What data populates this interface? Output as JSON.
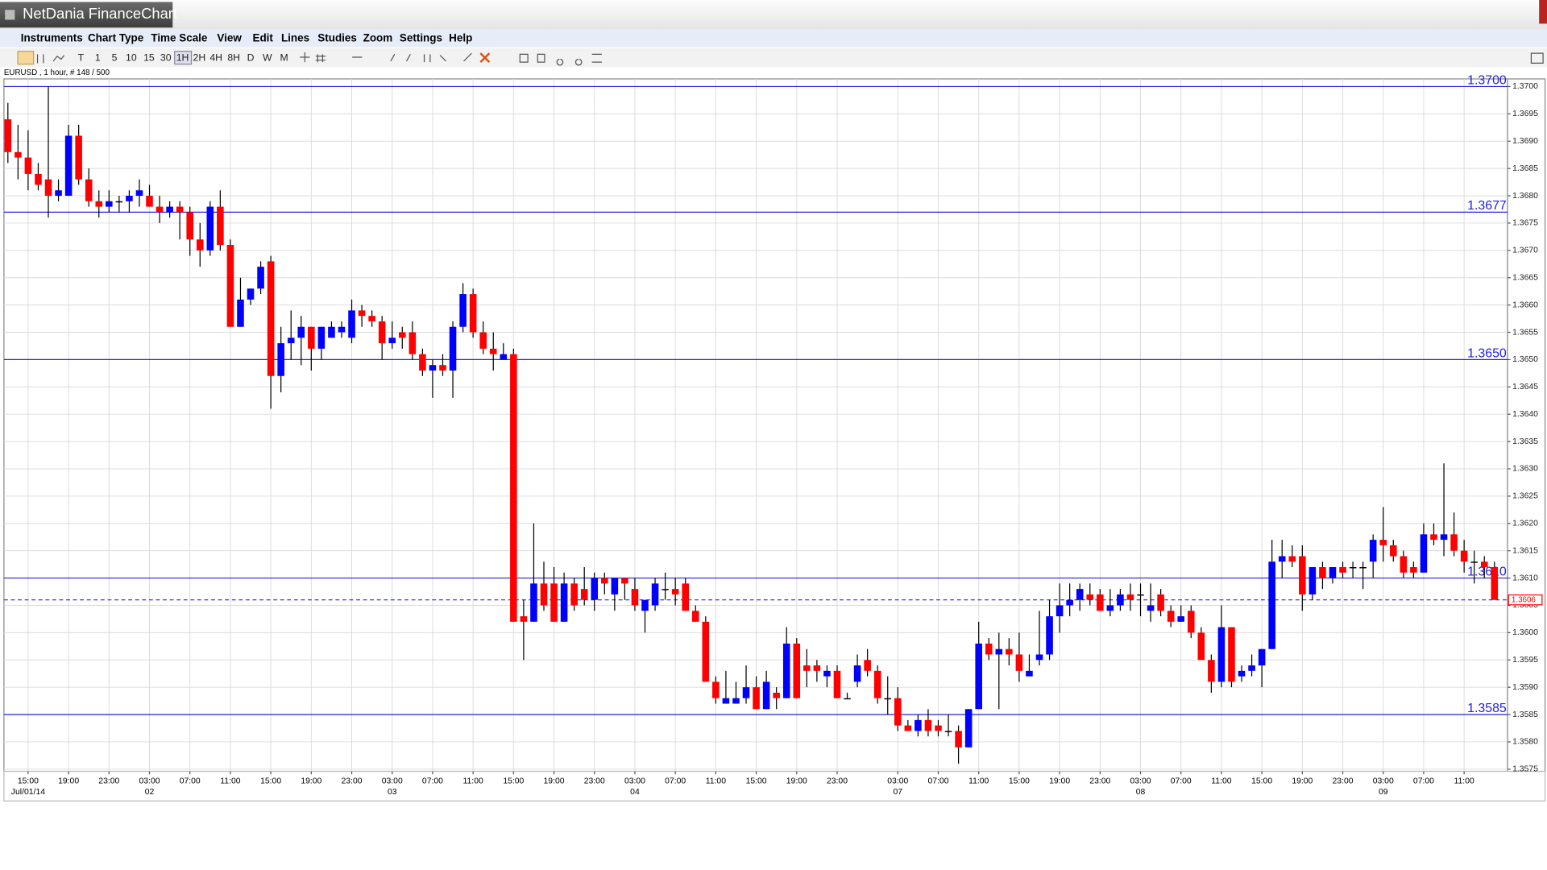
{
  "header": {
    "title": "NetDania FinanceChart"
  },
  "menu": [
    "Instruments",
    "Chart Type",
    "Time Scale",
    "View",
    "Edit",
    "Lines",
    "Studies",
    "Zoom",
    "Settings",
    "Help"
  ],
  "toolbar": {
    "timeframes": [
      "T",
      "1",
      "5",
      "10",
      "15",
      "30",
      "1H",
      "2H",
      "4H",
      "8H",
      "D",
      "W",
      "M"
    ]
  },
  "chart_data": {
    "type": "candlestick",
    "instrument_label": "EURUSD , 1 hour, # 148 / 500",
    "categories": [
      null,
      null,
      "15:00",
      null,
      null,
      null,
      "19:00",
      null,
      null,
      null,
      "23:00",
      null,
      null,
      null,
      "03:00",
      null,
      null,
      null,
      "07:00",
      null,
      null,
      null,
      "11:00",
      null,
      null,
      null,
      "15:00",
      null,
      null,
      null,
      "19:00",
      null,
      null,
      null,
      "23:00",
      null,
      null,
      null,
      "03:00",
      null,
      null,
      null,
      "07:00",
      null,
      null,
      null,
      "11:00",
      null,
      null,
      null,
      "15:00",
      null,
      null,
      null,
      "19:00",
      null,
      null,
      null,
      "23:00",
      null,
      null,
      null,
      "03:00",
      null,
      null,
      null,
      "07:00",
      null,
      null,
      null,
      "11:00",
      null,
      null,
      null,
      "15:00",
      null,
      null,
      null,
      "19:00",
      null,
      null,
      null,
      "23:00",
      null,
      null,
      null,
      null,
      null,
      "03:00",
      null,
      null,
      null,
      "07:00",
      null,
      null,
      null,
      "11:00",
      null,
      null,
      null,
      "15:00",
      null,
      null,
      null,
      "19:00",
      null,
      null,
      null,
      "23:00",
      null,
      null,
      null,
      "03:00",
      null,
      null,
      null,
      "07:00",
      null,
      null,
      null,
      "11:00",
      null,
      null,
      null,
      "15:00",
      null,
      null,
      null,
      "19:00",
      null,
      null,
      null,
      "23:00",
      null,
      null,
      null,
      "03:00",
      null,
      null,
      null,
      "07:00",
      null,
      null,
      null,
      "11:00",
      null,
      null,
      null
    ],
    "dates": [
      null,
      null,
      "Jul/01/14",
      null,
      null,
      null,
      null,
      null,
      null,
      null,
      null,
      null,
      null,
      null,
      "02",
      null,
      null,
      null,
      null,
      null,
      null,
      null,
      null,
      null,
      null,
      null,
      null,
      null,
      null,
      null,
      null,
      null,
      null,
      null,
      null,
      null,
      null,
      null,
      "03",
      null,
      null,
      null,
      null,
      null,
      null,
      null,
      null,
      null,
      null,
      null,
      null,
      null,
      null,
      null,
      null,
      null,
      null,
      null,
      null,
      null,
      null,
      null,
      "04",
      null,
      null,
      null,
      null,
      null,
      null,
      null,
      null,
      null,
      null,
      null,
      null,
      null,
      null,
      null,
      null,
      null,
      null,
      null,
      null,
      null,
      null,
      null,
      null,
      null,
      "07",
      null,
      null,
      null,
      null,
      null,
      null,
      null,
      null,
      null,
      null,
      null,
      null,
      null,
      null,
      null,
      null,
      null,
      null,
      null,
      null,
      null,
      null,
      null,
      "08",
      null,
      null,
      null,
      null,
      null,
      null,
      null,
      null,
      null,
      null,
      null,
      null,
      null,
      null,
      null,
      null,
      null,
      null,
      null,
      null,
      null,
      null,
      null,
      "09",
      null,
      null,
      null,
      null,
      null,
      null,
      null,
      null,
      null,
      null,
      null
    ],
    "open": [
      1.3694,
      1.3688,
      1.3687,
      1.3684,
      1.3683,
      1.368,
      1.368,
      1.3691,
      1.3683,
      1.3679,
      1.3678,
      1.3679,
      1.3679,
      1.368,
      1.368,
      1.3678,
      1.3677,
      1.3678,
      1.3677,
      1.3672,
      1.367,
      1.3678,
      1.3671,
      1.3656,
      1.3661,
      1.3663,
      1.3668,
      1.3647,
      1.3653,
      1.3654,
      1.3656,
      1.3652,
      1.3654,
      1.3655,
      1.3654,
      1.3659,
      1.3658,
      1.3657,
      1.3653,
      1.3655,
      1.3655,
      1.3651,
      1.3648,
      1.3649,
      1.3648,
      1.3656,
      1.3662,
      1.3655,
      1.3652,
      1.365,
      1.3651,
      1.3603,
      1.3602,
      1.3609,
      1.3609,
      1.3602,
      1.3609,
      1.3608,
      1.3606,
      1.361,
      1.3607,
      1.361,
      1.3608,
      1.3604,
      1.3605,
      1.3608,
      1.3608,
      1.3609,
      1.3604,
      1.3602,
      1.3591,
      1.3587,
      1.3587,
      1.3588,
      1.359,
      1.3586,
      1.3589,
      1.3588,
      1.3598,
      1.3594,
      1.3594,
      1.3592,
      1.3593,
      1.3588,
      1.3591,
      1.3595,
      1.3593,
      1.3588,
      1.3588,
      1.3583,
      1.3582,
      1.3584,
      1.3583,
      1.3582,
      1.3582,
      1.3579,
      1.3586,
      1.3598,
      1.3596,
      1.3597,
      1.3596,
      1.3592,
      1.3595,
      1.3596,
      1.3603,
      1.3605,
      1.3606,
      1.3607,
      1.3607,
      1.3604,
      1.3605,
      1.3607,
      1.3607,
      1.3604,
      1.3607,
      1.3604,
      1.3602,
      1.3604,
      1.36,
      1.3595,
      1.3591,
      1.3601,
      1.3592,
      1.3593,
      1.3594,
      1.3597,
      1.3613,
      1.3614,
      1.3614,
      1.3607,
      1.3612,
      1.361,
      1.3612,
      1.3612,
      1.3612,
      1.3613,
      1.3617,
      1.3616,
      1.3614,
      1.3612,
      1.3611,
      1.3618,
      1.3617,
      1.3618,
      1.3615,
      1.3613,
      1.3613,
      1.3612
    ],
    "high": [
      1.3697,
      1.3693,
      1.3692,
      1.3686,
      1.37,
      1.3683,
      1.3693,
      1.3693,
      1.3685,
      1.3681,
      1.3681,
      1.368,
      1.3681,
      1.3683,
      1.3682,
      1.368,
      1.3679,
      1.3679,
      1.3678,
      1.3675,
      1.3679,
      1.3681,
      1.3672,
      1.3665,
      1.3663,
      1.3668,
      1.3669,
      1.3656,
      1.3659,
      1.3658,
      1.3656,
      1.3656,
      1.3657,
      1.3657,
      1.3661,
      1.366,
      1.3659,
      1.3658,
      1.3657,
      1.3656,
      1.3657,
      1.3652,
      1.365,
      1.3651,
      1.3657,
      1.3664,
      1.3663,
      1.3657,
      1.3655,
      1.3653,
      1.3652,
      1.3606,
      1.362,
      1.3613,
      1.3612,
      1.3611,
      1.361,
      1.3612,
      1.3611,
      1.3611,
      1.361,
      1.361,
      1.361,
      1.3606,
      1.361,
      1.3611,
      1.361,
      1.361,
      1.3605,
      1.3603,
      1.3592,
      1.3593,
      1.3591,
      1.3594,
      1.3592,
      1.3593,
      1.359,
      1.3601,
      1.3599,
      1.3597,
      1.3595,
      1.3594,
      1.3594,
      1.3589,
      1.3596,
      1.3597,
      1.3594,
      1.3592,
      1.359,
      1.3584,
      1.3585,
      1.3586,
      1.3584,
      1.3585,
      1.3583,
      1.3586,
      1.3602,
      1.3599,
      1.36,
      1.3599,
      1.36,
      1.3596,
      1.3604,
      1.3606,
      1.3609,
      1.3609,
      1.3609,
      1.3609,
      1.3608,
      1.3608,
      1.3608,
      1.3609,
      1.3609,
      1.3609,
      1.3608,
      1.3605,
      1.3605,
      1.3605,
      1.3601,
      1.3596,
      1.3605,
      1.3601,
      1.3594,
      1.3596,
      1.3597,
      1.3617,
      1.3617,
      1.3616,
      1.3616,
      1.3612,
      1.3613,
      1.3612,
      1.3613,
      1.3613,
      1.3613,
      1.3618,
      1.3623,
      1.3617,
      1.3615,
      1.3613,
      1.362,
      1.362,
      1.3631,
      1.3622,
      1.3617,
      1.3615,
      1.3614,
      1.3613
    ],
    "low": [
      1.3686,
      1.3683,
      1.3681,
      1.3681,
      1.3676,
      1.3679,
      1.368,
      1.3682,
      1.3678,
      1.3676,
      1.3677,
      1.3677,
      1.3677,
      1.3678,
      1.3678,
      1.3675,
      1.3676,
      1.3672,
      1.3669,
      1.3667,
      1.3669,
      1.367,
      1.3656,
      1.3656,
      1.366,
      1.3662,
      1.3641,
      1.3644,
      1.365,
      1.3649,
      1.3648,
      1.365,
      1.3654,
      1.3654,
      1.3653,
      1.3656,
      1.3656,
      1.365,
      1.3652,
      1.3652,
      1.365,
      1.3647,
      1.3643,
      1.3647,
      1.3643,
      1.3655,
      1.3654,
      1.3651,
      1.3648,
      1.365,
      1.3602,
      1.3595,
      1.3602,
      1.3604,
      1.3602,
      1.3602,
      1.3604,
      1.3605,
      1.3604,
      1.3607,
      1.3604,
      1.3606,
      1.3604,
      1.36,
      1.3604,
      1.3606,
      1.3605,
      1.3604,
      1.3602,
      1.3591,
      1.3587,
      1.3587,
      1.3587,
      1.3587,
      1.3586,
      1.3586,
      1.3586,
      1.3588,
      1.3588,
      1.359,
      1.3591,
      1.359,
      1.3588,
      1.3588,
      1.359,
      1.3592,
      1.3587,
      1.3585,
      1.3582,
      1.3582,
      1.3581,
      1.3581,
      1.3581,
      1.3581,
      1.3576,
      1.3579,
      1.3586,
      1.3595,
      1.3586,
      1.3594,
      1.3591,
      1.3592,
      1.3594,
      1.3595,
      1.36,
      1.3603,
      1.3604,
      1.3605,
      1.3604,
      1.3603,
      1.3604,
      1.3604,
      1.3603,
      1.3602,
      1.3603,
      1.3601,
      1.3602,
      1.3599,
      1.3595,
      1.3589,
      1.359,
      1.359,
      1.3591,
      1.3592,
      1.359,
      1.3597,
      1.361,
      1.3612,
      1.3604,
      1.3606,
      1.3608,
      1.3609,
      1.361,
      1.361,
      1.3608,
      1.361,
      1.3613,
      1.3613,
      1.361,
      1.361,
      1.3611,
      1.3616,
      1.3614,
      1.3614,
      1.3611,
      1.3609,
      1.361,
      1.3606
    ],
    "close": [
      1.3688,
      1.3687,
      1.3684,
      1.3682,
      1.368,
      1.3681,
      1.3691,
      1.3683,
      1.3679,
      1.3678,
      1.3679,
      1.3679,
      1.368,
      1.3681,
      1.3678,
      1.3677,
      1.3678,
      1.3677,
      1.3672,
      1.367,
      1.3678,
      1.3671,
      1.3656,
      1.3661,
      1.3663,
      1.3667,
      1.3647,
      1.3653,
      1.3654,
      1.3656,
      1.3652,
      1.3656,
      1.3656,
      1.3656,
      1.3659,
      1.3658,
      1.3657,
      1.3653,
      1.3654,
      1.3654,
      1.3651,
      1.3648,
      1.3649,
      1.3648,
      1.3656,
      1.3662,
      1.3655,
      1.3652,
      1.3651,
      1.3651,
      1.3602,
      1.3602,
      1.3609,
      1.3605,
      1.3602,
      1.3609,
      1.3605,
      1.3606,
      1.361,
      1.3609,
      1.361,
      1.3609,
      1.3605,
      1.3606,
      1.3609,
      1.3608,
      1.3607,
      1.3604,
      1.3602,
      1.3591,
      1.3588,
      1.3588,
      1.3588,
      1.359,
      1.3586,
      1.3591,
      1.3588,
      1.3598,
      1.3588,
      1.3593,
      1.3593,
      1.3593,
      1.3588,
      1.3588,
      1.3594,
      1.3593,
      1.3588,
      1.3588,
      1.3583,
      1.3582,
      1.3584,
      1.3582,
      1.3582,
      1.3582,
      1.3579,
      1.3586,
      1.3598,
      1.3596,
      1.3597,
      1.3596,
      1.3593,
      1.3593,
      1.3596,
      1.3603,
      1.3605,
      1.3606,
      1.3608,
      1.3606,
      1.3604,
      1.3605,
      1.3607,
      1.3606,
      1.3607,
      1.3605,
      1.3604,
      1.3602,
      1.3603,
      1.36,
      1.3595,
      1.3591,
      1.3601,
      1.3591,
      1.3593,
      1.3594,
      1.3597,
      1.3613,
      1.3614,
      1.3613,
      1.3607,
      1.3612,
      1.361,
      1.3612,
      1.3611,
      1.3612,
      1.3612,
      1.3617,
      1.3616,
      1.3614,
      1.3611,
      1.3611,
      1.3618,
      1.3617,
      1.3618,
      1.3615,
      1.3613,
      1.3613,
      1.3612,
      1.3606
    ],
    "up_color": "#0000ff",
    "down_color": "#ff0000",
    "ylim": [
      1.35746,
      1.37014
    ],
    "yticks": [
      1.3575,
      {
        "value": 1.358,
        "label": "1.3580"
      },
      1.3585,
      {
        "value": 1.359,
        "label": "1.3590"
      },
      1.3595,
      {
        "value": 1.36,
        "label": "1.3600"
      },
      1.3605,
      {
        "value": 1.361,
        "label": "1.3610"
      },
      1.3615,
      {
        "value": 1.362,
        "label": "1.3620"
      },
      1.3625,
      {
        "value": 1.363,
        "label": "1.3630"
      },
      1.3635,
      {
        "value": 1.364,
        "label": "1.3640"
      },
      1.3645,
      {
        "value": 1.365,
        "label": "1.3650"
      },
      1.3655,
      {
        "value": 1.366,
        "label": "1.3660"
      },
      1.3665,
      {
        "value": 1.367,
        "label": "1.3670"
      },
      1.3675,
      {
        "value": 1.368,
        "label": "1.3680"
      },
      1.3685,
      {
        "value": 1.369,
        "label": "1.3690"
      },
      1.3695,
      {
        "value": 1.37,
        "label": "1.3700"
      }
    ],
    "grid": true,
    "levels": [
      {
        "value": 1.37,
        "label": "1.3700"
      },
      1.3677,
      {
        "value": 1.365,
        "label": "1.3650"
      },
      {
        "value": 1.361,
        "label": "1.3610"
      },
      1.3585
    ],
    "level_color": "#2222dd",
    "last_price": 1.3606,
    "last_price_color": "#ff0000"
  }
}
